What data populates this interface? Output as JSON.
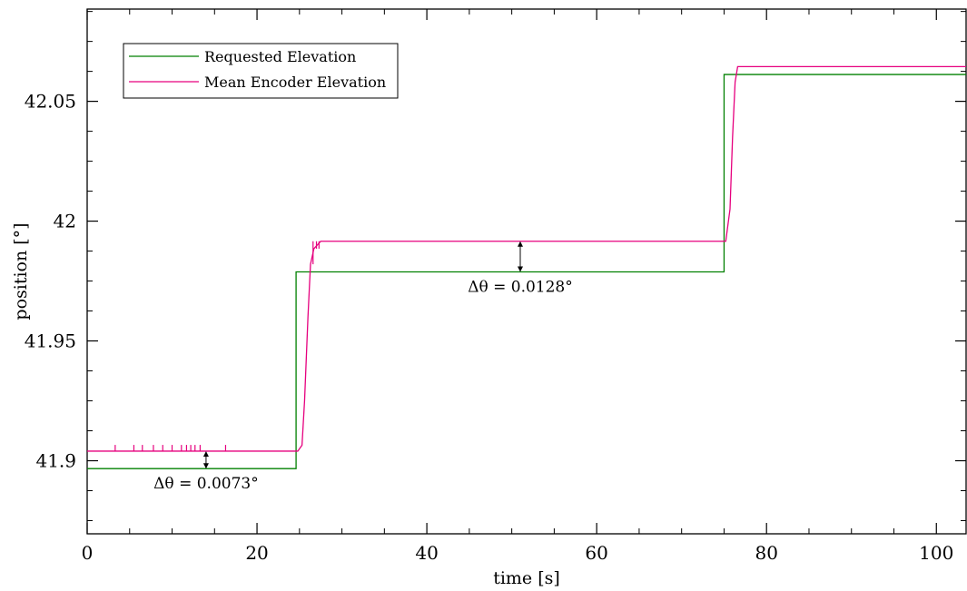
{
  "chart_data": {
    "type": "line",
    "title": "",
    "xlabel": "time [s]",
    "ylabel": "position [°]",
    "xlim": [
      0,
      103.5
    ],
    "ylim": [
      41.8695,
      42.0885
    ],
    "x_ticks": [
      0,
      20,
      40,
      60,
      80,
      100
    ],
    "x_tick_labels": [
      "0",
      "20",
      "40",
      "60",
      "80",
      "100"
    ],
    "y_ticks": [
      41.9,
      41.95,
      42,
      42.05
    ],
    "y_tick_labels": [
      "41.9",
      "41.95",
      "42",
      "42.05"
    ],
    "grid": false,
    "legend_position": "top-left",
    "series": [
      {
        "name": "Requested Elevation",
        "color": "#008000",
        "points": [
          [
            0,
            41.8967
          ],
          [
            24.6,
            41.8967
          ],
          [
            24.6,
            41.9788
          ],
          [
            75.0,
            41.9788
          ],
          [
            75.0,
            42.0612
          ],
          [
            103.5,
            42.0612
          ]
        ]
      },
      {
        "name": "Mean Encoder Elevation",
        "color": "#e6007e",
        "points": [
          [
            0,
            41.904
          ],
          [
            24.8,
            41.904
          ],
          [
            25.3,
            41.9065
          ],
          [
            25.6,
            41.925
          ],
          [
            26.0,
            41.96
          ],
          [
            26.3,
            41.982
          ],
          [
            26.7,
            41.9885
          ],
          [
            27.5,
            41.9916
          ],
          [
            75.2,
            41.9916
          ],
          [
            75.7,
            42.005
          ],
          [
            76.0,
            42.035
          ],
          [
            76.3,
            42.058
          ],
          [
            76.6,
            42.0645
          ],
          [
            103.5,
            42.0645
          ]
        ],
        "spikes": [
          {
            "x": 3.3,
            "y_top": 41.9066
          },
          {
            "x": 5.5,
            "y_top": 41.9066
          },
          {
            "x": 6.5,
            "y_top": 41.9066
          },
          {
            "x": 7.8,
            "y_top": 41.9066
          },
          {
            "x": 8.9,
            "y_top": 41.9066
          },
          {
            "x": 10.0,
            "y_top": 41.9066
          },
          {
            "x": 11.1,
            "y_top": 41.9066
          },
          {
            "x": 11.7,
            "y_top": 41.9066
          },
          {
            "x": 12.2,
            "y_top": 41.9066
          },
          {
            "x": 12.7,
            "y_top": 41.9066
          },
          {
            "x": 13.3,
            "y_top": 41.9066
          },
          {
            "x": 16.3,
            "y_top": 41.9066
          },
          {
            "x": 26.6,
            "y_top": 41.9916
          },
          {
            "x": 27.0,
            "y_top": 41.9916
          },
          {
            "x": 27.3,
            "y_top": 41.9916
          },
          {
            "x": 27.6,
            "y_top": 41.9916
          },
          {
            "x": 28.0,
            "y_top": 41.9916
          },
          {
            "x": 28.3,
            "y_top": 41.9916
          },
          {
            "x": 28.7,
            "y_top": 41.9916
          },
          {
            "x": 29.1,
            "y_top": 41.9916
          },
          {
            "x": 29.5,
            "y_top": 41.9916
          },
          {
            "x": 36.0,
            "y_top": 41.9916
          },
          {
            "x": 76.8,
            "y_top": 42.0645
          },
          {
            "x": 77.1,
            "y_top": 42.0645
          },
          {
            "x": 77.4,
            "y_top": 42.0645
          },
          {
            "x": 77.7,
            "y_top": 42.0645
          },
          {
            "x": 78.0,
            "y_top": 42.0645
          },
          {
            "x": 78.3,
            "y_top": 42.0645
          },
          {
            "x": 78.7,
            "y_top": 42.0645
          }
        ]
      }
    ],
    "annotations": [
      {
        "label": "Δθ = 0.0073°",
        "x": 14.0,
        "y_from": 41.8967,
        "y_to": 41.904
      },
      {
        "label": "Δθ = 0.0128°",
        "x": 51.0,
        "y_from": 41.9788,
        "y_to": 41.9916
      }
    ]
  }
}
